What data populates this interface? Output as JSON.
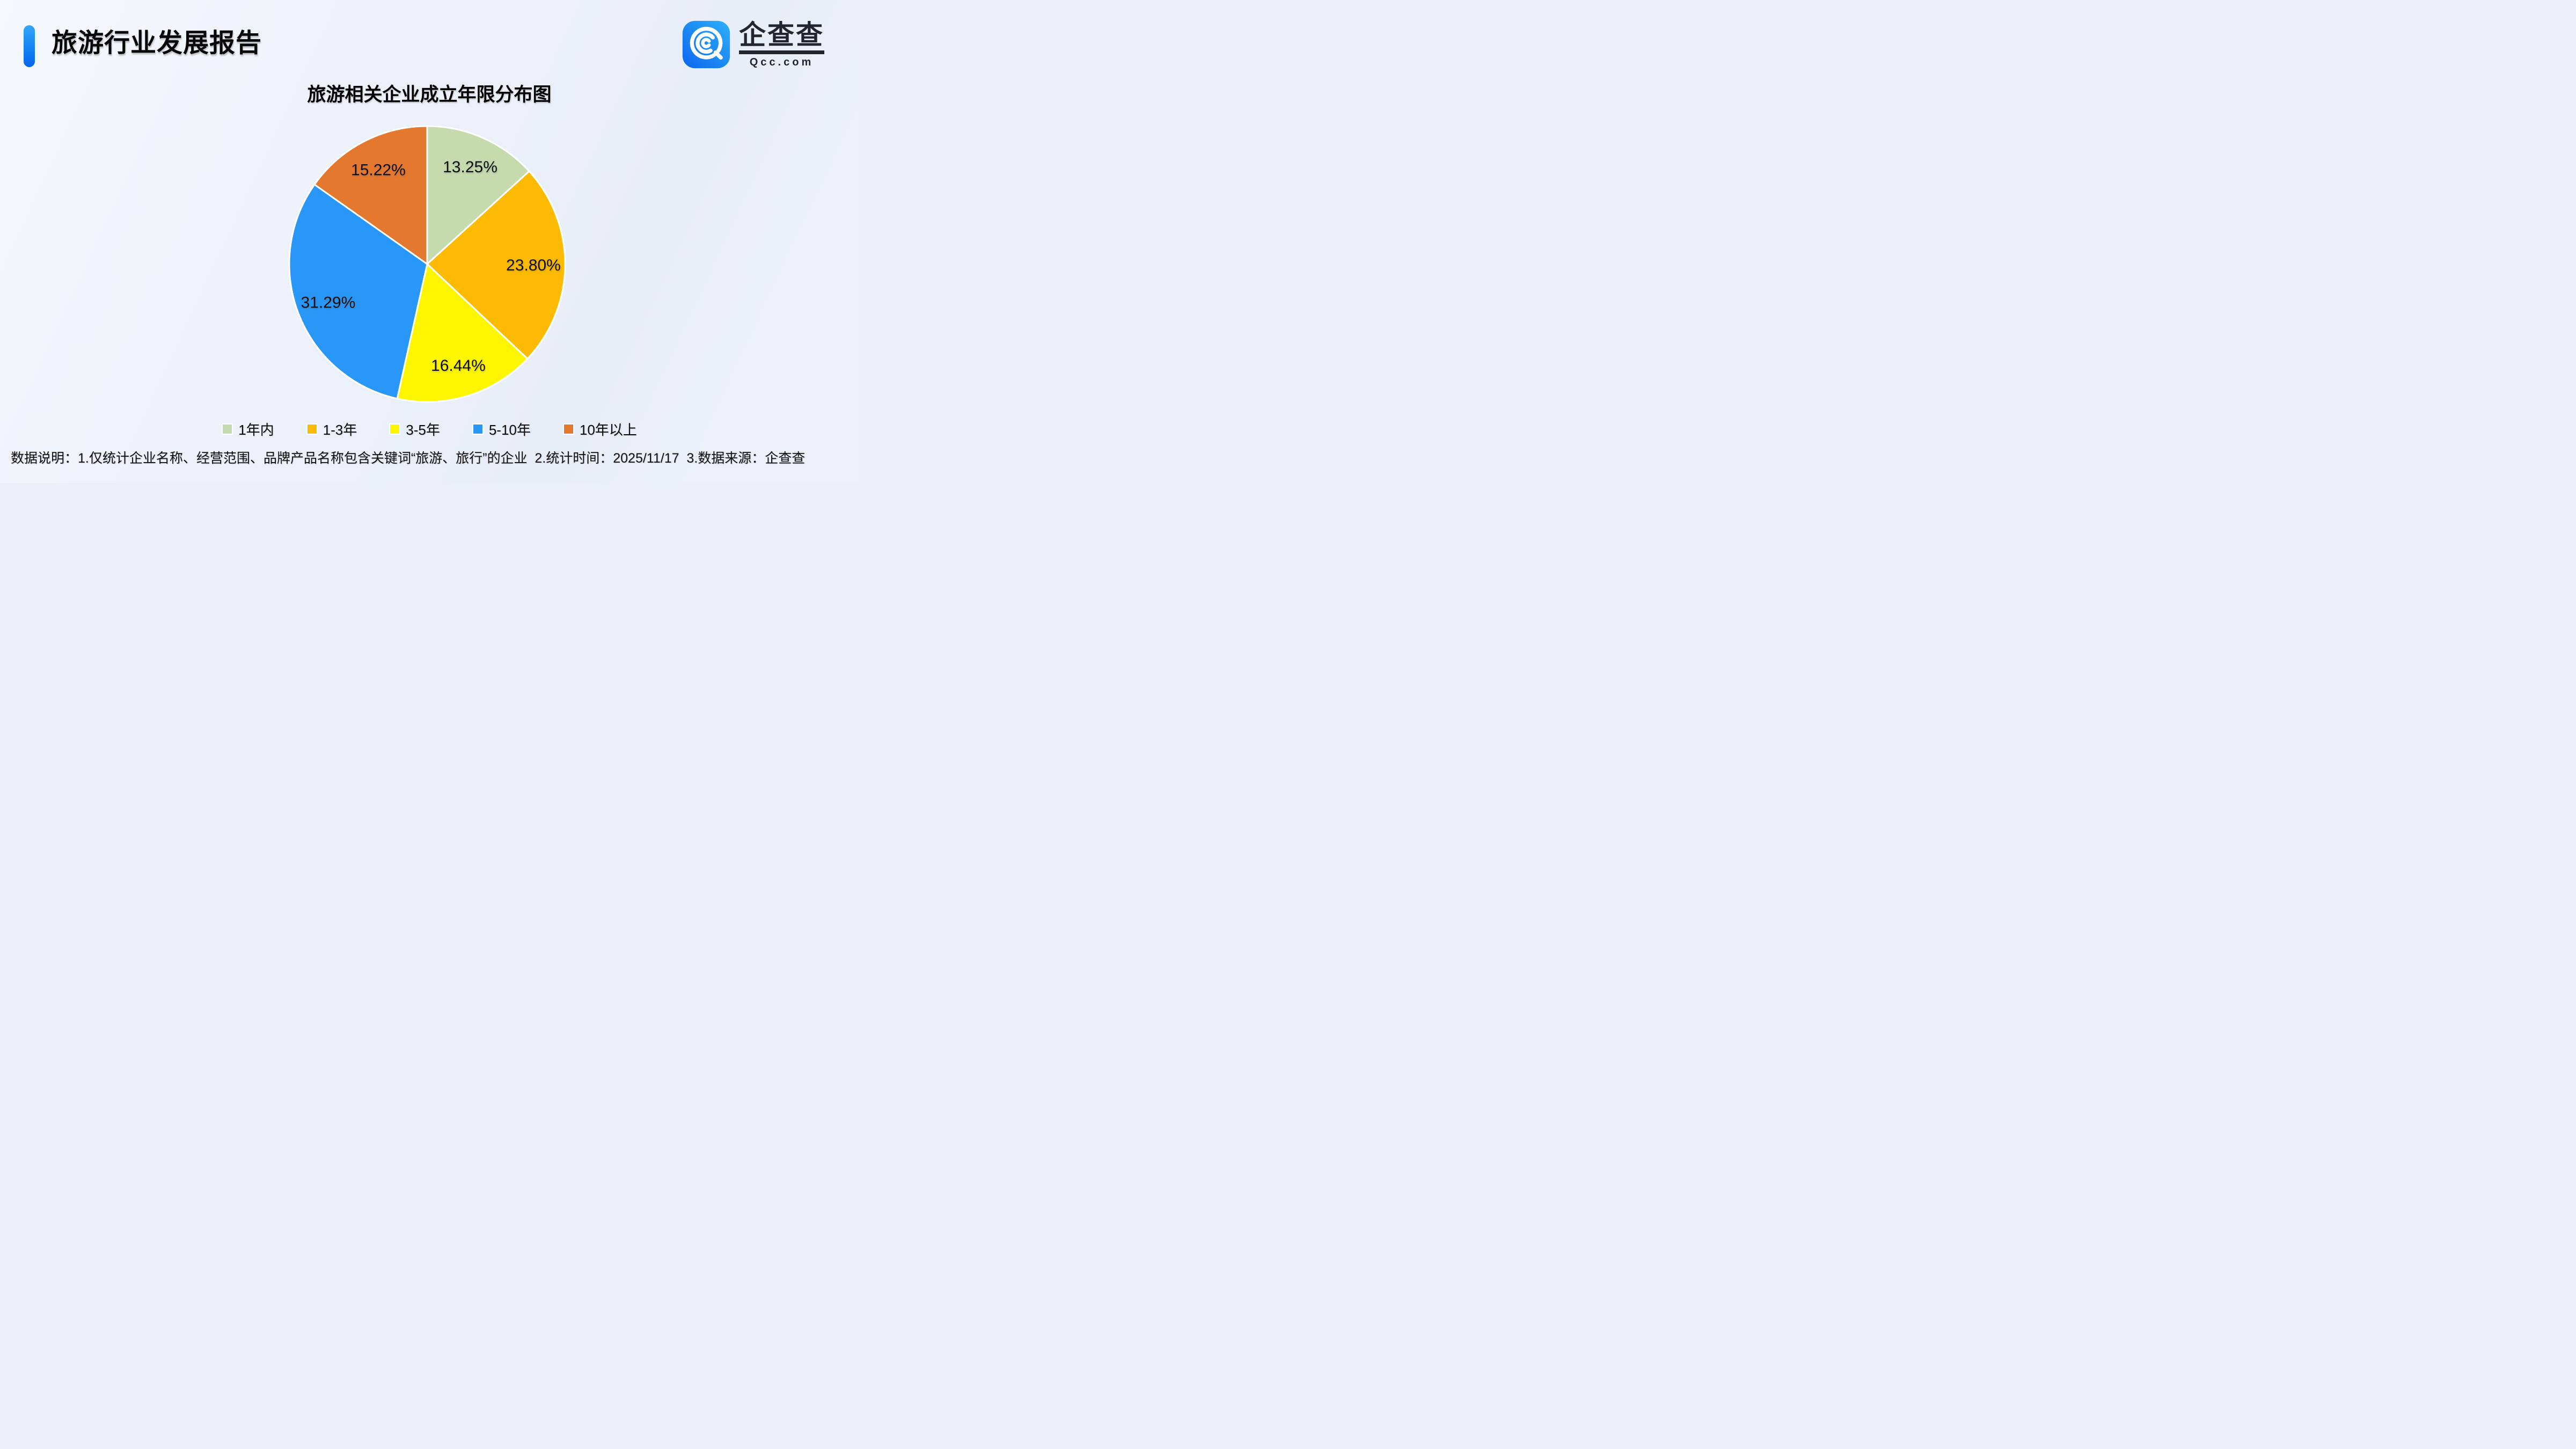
{
  "header": {
    "title": "旅游行业发展报告",
    "accent_color": "#1583f4"
  },
  "brand": {
    "name": "企查查",
    "domain": "Qcc.com",
    "ink_color": "#23252c",
    "icon_gradient_start": "#0d66f0",
    "icon_gradient_end": "#2cb0f9"
  },
  "chart_data": {
    "type": "pie",
    "title": "旅游相关企业成立年限分布图",
    "categories": [
      "1年内",
      "1-3年",
      "3-5年",
      "5-10年",
      "10年以上"
    ],
    "values": [
      13.25,
      23.8,
      16.44,
      31.29,
      15.22
    ],
    "labels": [
      "13.25%",
      "23.80%",
      "16.44%",
      "31.29%",
      "15.22%"
    ],
    "colors": [
      "#c5dbae",
      "#fcba02",
      "#fef600",
      "#2897f8",
      "#e5782f"
    ],
    "start_angle_deg": 0,
    "direction": "clockwise",
    "slice_border_color": "#ffffff",
    "legend_position": "bottom",
    "label_position": "inside"
  },
  "footer": {
    "note": "数据说明：1.仅统计企业名称、经营范围、品牌产品名称包含关键词“旅游、旅行”的企业  2.统计时间：2025/11/17  3.数据来源：企查查"
  }
}
